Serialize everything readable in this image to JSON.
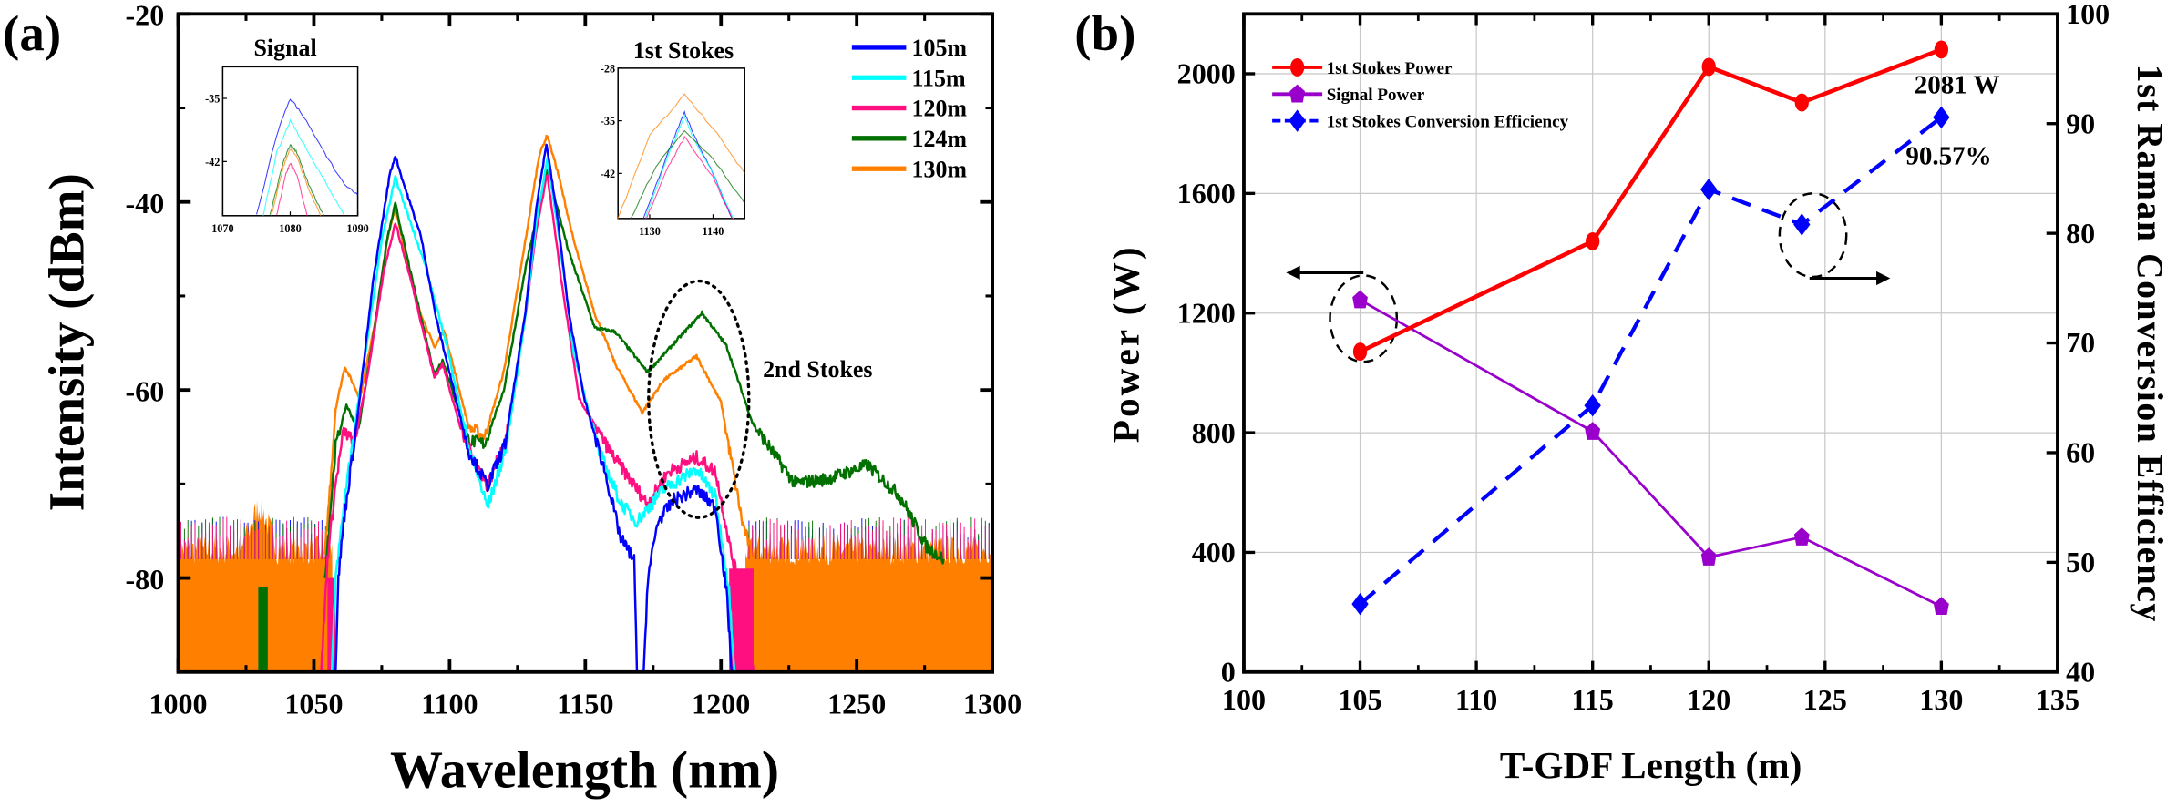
{
  "chart_data": [
    {
      "type": "line",
      "panel_label": "(a)",
      "xlabel": "Wavelength (nm)",
      "ylabel": "Intensity (dBm)",
      "xlim": [
        1000,
        1300
      ],
      "ylim": [
        -90,
        -20
      ],
      "xticks": [
        1000,
        1050,
        1100,
        1150,
        1200,
        1250,
        1300
      ],
      "yticks": [
        -20,
        -40,
        -60,
        -80
      ],
      "grid": false,
      "legend_position": "top-right",
      "noise_floor_dBm": -77,
      "annotations": {
        "signal": "Signal",
        "first_stokes": "1st Stokes",
        "second_stokes": "2nd Stokes"
      },
      "series": [
        {
          "name": "105m",
          "color": "#0000ff",
          "points": [
            [
              1058,
              -90
            ],
            [
              1059,
              -80
            ],
            [
              1061,
              -74
            ],
            [
              1066,
              -63
            ],
            [
              1072,
              -48
            ],
            [
              1078,
              -37
            ],
            [
              1080,
              -35.1
            ],
            [
              1083,
              -38
            ],
            [
              1089.5,
              -43.7
            ],
            [
              1095,
              -52.3
            ],
            [
              1099,
              -57
            ],
            [
              1107,
              -66.5
            ],
            [
              1114,
              -70.2
            ],
            [
              1120.5,
              -65.7
            ],
            [
              1128,
              -51.6
            ],
            [
              1132,
              -40.4
            ],
            [
              1135.7,
              -33.8
            ],
            [
              1140,
              -42.2
            ],
            [
              1143.8,
              -51.6
            ],
            [
              1149.6,
              -60.9
            ],
            [
              1157,
              -68.4
            ],
            [
              1163,
              -75.8
            ],
            [
              1168,
              -78
            ],
            [
              1169,
              -90
            ],
            [
              1171.5,
              -90
            ],
            [
              1173,
              -80
            ],
            [
              1176.7,
              -74
            ],
            [
              1182.6,
              -71.7
            ],
            [
              1191,
              -70.6
            ],
            [
              1198,
              -72.5
            ],
            [
              1202,
              -81.4
            ],
            [
              1204,
              -90
            ]
          ]
        },
        {
          "name": "115m",
          "color": "#00ffff",
          "points": [
            [
              1056.6,
              -90
            ],
            [
              1058,
              -80
            ],
            [
              1062,
              -70
            ],
            [
              1068,
              -58
            ],
            [
              1075,
              -44
            ],
            [
              1080,
              -37.4
            ],
            [
              1083,
              -40
            ],
            [
              1091,
              -46.7
            ],
            [
              1099,
              -55.3
            ],
            [
              1107,
              -66
            ],
            [
              1114,
              -72.5
            ],
            [
              1121,
              -66
            ],
            [
              1128,
              -52
            ],
            [
              1132,
              -42
            ],
            [
              1136,
              -35.5
            ],
            [
              1140,
              -43
            ],
            [
              1145.7,
              -56
            ],
            [
              1155,
              -66.5
            ],
            [
              1163,
              -72
            ],
            [
              1169,
              -74
            ],
            [
              1178.7,
              -70.6
            ],
            [
              1191,
              -68.4
            ],
            [
              1198,
              -71.4
            ],
            [
              1203,
              -81.4
            ],
            [
              1205,
              -90
            ]
          ]
        },
        {
          "name": "120m",
          "color": "#ff0f80",
          "points": [
            [
              1052.7,
              -90
            ],
            [
              1055,
              -78
            ],
            [
              1058,
              -70
            ],
            [
              1061,
              -64.3
            ],
            [
              1065,
              -65.7
            ],
            [
              1070,
              -58
            ],
            [
              1076,
              -47
            ],
            [
              1080,
              -42.2
            ],
            [
              1086,
              -48.6
            ],
            [
              1094.4,
              -58.7
            ],
            [
              1097.4,
              -57.2
            ],
            [
              1105,
              -65
            ],
            [
              1114,
              -70.2
            ],
            [
              1121,
              -65
            ],
            [
              1128,
              -52
            ],
            [
              1132,
              -43
            ],
            [
              1136,
              -37
            ],
            [
              1141,
              -48
            ],
            [
              1147.7,
              -60.9
            ],
            [
              1159,
              -66.5
            ],
            [
              1172.9,
              -72.1
            ],
            [
              1180.6,
              -68.7
            ],
            [
              1191,
              -67.2
            ],
            [
              1198,
              -68.7
            ],
            [
              1204,
              -77.7
            ],
            [
              1208,
              -82
            ],
            [
              1212,
              -90
            ]
          ]
        },
        {
          "name": "124m",
          "color": "#007000",
          "points": [
            [
              1054,
              -80
            ],
            [
              1058,
              -66
            ],
            [
              1062,
              -61.6
            ],
            [
              1066.4,
              -64.3
            ],
            [
              1072,
              -54
            ],
            [
              1077,
              -44
            ],
            [
              1080,
              -40.2
            ],
            [
              1086,
              -48
            ],
            [
              1094.4,
              -58.3
            ],
            [
              1097.4,
              -56.8
            ],
            [
              1107,
              -65.4
            ],
            [
              1113,
              -65.7
            ],
            [
              1120,
              -60
            ],
            [
              1128,
              -47
            ],
            [
              1136,
              -36.5
            ],
            [
              1143.8,
              -45.2
            ],
            [
              1153.5,
              -53.4
            ],
            [
              1161,
              -53.8
            ],
            [
              1172.9,
              -58.1
            ],
            [
              1180.6,
              -55.7
            ],
            [
              1193,
              -51.8
            ],
            [
              1202,
              -55.3
            ],
            [
              1211.6,
              -63.5
            ],
            [
              1227,
              -69.9
            ],
            [
              1238.8,
              -69.5
            ],
            [
              1254,
              -68
            ],
            [
              1266,
              -71.3
            ],
            [
              1275.6,
              -76.6
            ],
            [
              1282,
              -78
            ]
          ]
        },
        {
          "name": "130m",
          "color": "#ff8000",
          "points": [
            [
              1054,
              -78
            ],
            [
              1058,
              -62
            ],
            [
              1061.4,
              -57.5
            ],
            [
              1067,
              -60.9
            ],
            [
              1073,
              -52
            ],
            [
              1077,
              -44
            ],
            [
              1080,
              -40.7
            ],
            [
              1088,
              -50.8
            ],
            [
              1094.4,
              -55.5
            ],
            [
              1098,
              -53.6
            ],
            [
              1107,
              -63.9
            ],
            [
              1113,
              -65
            ],
            [
              1120,
              -58
            ],
            [
              1128,
              -44
            ],
            [
              1133,
              -35
            ],
            [
              1136,
              -32.9
            ],
            [
              1140,
              -37
            ],
            [
              1145.7,
              -44.1
            ],
            [
              1153.5,
              -51.9
            ],
            [
              1161,
              -57.2
            ],
            [
              1171,
              -62.4
            ],
            [
              1178.7,
              -59
            ],
            [
              1191,
              -56.4
            ],
            [
              1200,
              -61.3
            ],
            [
              1207.8,
              -74
            ],
            [
              1213.6,
              -79.6
            ]
          ]
        }
      ],
      "insets": [
        {
          "title": "Signal",
          "xlim": [
            1070,
            1090
          ],
          "ylim": [
            -48,
            -31.5
          ],
          "xticks": [
            1070,
            1080,
            1090
          ],
          "yticks": [
            -35,
            -42
          ],
          "series": [
            {
              "name": "105m",
              "points": [
                [
                  1075,
                  -48
                ],
                [
                  1078,
                  -39
                ],
                [
                  1080,
                  -35
                ],
                [
                  1082,
                  -37
                ],
                [
                  1085,
                  -41
                ],
                [
                  1088,
                  -44.5
                ],
                [
                  1090,
                  -45.7
                ]
              ]
            },
            {
              "name": "115m",
              "points": [
                [
                  1076,
                  -48
                ],
                [
                  1078,
                  -41
                ],
                [
                  1080,
                  -37.5
                ],
                [
                  1082,
                  -40
                ],
                [
                  1085,
                  -44
                ],
                [
                  1088,
                  -48
                ]
              ]
            },
            {
              "name": "124m",
              "points": [
                [
                  1077,
                  -48
                ],
                [
                  1079,
                  -42
                ],
                [
                  1080,
                  -40.2
                ],
                [
                  1081,
                  -41
                ],
                [
                  1083,
                  -45
                ],
                [
                  1085,
                  -48
                ]
              ]
            },
            {
              "name": "130m",
              "points": [
                [
                  1077.2,
                  -48
                ],
                [
                  1079,
                  -42.5
                ],
                [
                  1080,
                  -40.6
                ],
                [
                  1081,
                  -41.5
                ],
                [
                  1083,
                  -45.5
                ],
                [
                  1084.5,
                  -48
                ]
              ]
            },
            {
              "name": "120m",
              "points": [
                [
                  1078,
                  -48
                ],
                [
                  1079.3,
                  -43.5
                ],
                [
                  1080,
                  -42.2
                ],
                [
                  1081,
                  -43.5
                ],
                [
                  1082.5,
                  -48
                ]
              ]
            }
          ]
        },
        {
          "title": "1st Stokes",
          "xlim": [
            1125,
            1145
          ],
          "ylim": [
            -48,
            -28
          ],
          "xticks": [
            1130,
            1140
          ],
          "yticks": [
            -28,
            -35,
            -42
          ],
          "series": [
            {
              "name": "130m",
              "points": [
                [
                  1125,
                  -48
                ],
                [
                  1130,
                  -37
                ],
                [
                  1135.5,
                  -31.5
                ],
                [
                  1140,
                  -36
                ],
                [
                  1145,
                  -42
                ]
              ]
            },
            {
              "name": "105m",
              "points": [
                [
                  1129,
                  -48
                ],
                [
                  1133,
                  -39
                ],
                [
                  1135.5,
                  -33.8
                ],
                [
                  1137,
                  -37
                ],
                [
                  1140,
                  -42
                ],
                [
                  1143,
                  -48
                ]
              ]
            },
            {
              "name": "115m",
              "points": [
                [
                  1129.3,
                  -48
                ],
                [
                  1133,
                  -39.5
                ],
                [
                  1135.5,
                  -34.5
                ],
                [
                  1137,
                  -37.5
                ],
                [
                  1140,
                  -42
                ],
                [
                  1143.2,
                  -48
                ]
              ]
            },
            {
              "name": "124m",
              "points": [
                [
                  1127,
                  -48
                ],
                [
                  1131,
                  -41
                ],
                [
                  1135.5,
                  -36.3
                ],
                [
                  1140,
                  -40
                ],
                [
                  1145,
                  -46
                ]
              ]
            },
            {
              "name": "120m",
              "points": [
                [
                  1129.5,
                  -48
                ],
                [
                  1133,
                  -41
                ],
                [
                  1135.5,
                  -37.2
                ],
                [
                  1140,
                  -42.5
                ],
                [
                  1143,
                  -48
                ]
              ]
            }
          ]
        }
      ]
    },
    {
      "type": "line",
      "panel_label": "(b)",
      "xlabel": "T-GDF Length (m)",
      "ylabel": "Power (W)",
      "ylabel_right": "1st Raman Conversion Efficiency",
      "xlim": [
        100,
        135
      ],
      "ylim": [
        0,
        2200
      ],
      "ylim_right": [
        40,
        100
      ],
      "xticks": [
        100,
        105,
        110,
        115,
        120,
        125,
        130,
        135
      ],
      "yticks": [
        0,
        400,
        800,
        1200,
        1600,
        2000
      ],
      "yticks_right": [
        40,
        50,
        60,
        70,
        80,
        90,
        100
      ],
      "grid": true,
      "legend_position": "top-left",
      "x": [
        105,
        115,
        120,
        124,
        130
      ],
      "series": [
        {
          "name": "1st Stokes Power",
          "axis": "left",
          "color": "#ff0000",
          "marker": "circle",
          "dashed": false,
          "values": [
            1071,
            1440,
            2023,
            1904,
            2081
          ]
        },
        {
          "name": "Signal Power",
          "axis": "left",
          "color": "#9900cc",
          "marker": "pentagon",
          "dashed": false,
          "values": [
            1244,
            804,
            384,
            451,
            219
          ]
        },
        {
          "name": "1st Stokes Conversion Efficiency",
          "axis": "right",
          "color": "#0000ff",
          "marker": "diamond",
          "dashed": true,
          "values": [
            46.2,
            64.3,
            84.0,
            80.8,
            90.57
          ]
        }
      ],
      "annotations": {
        "peak_power": "2081 W",
        "peak_efficiency": "90.57%"
      }
    }
  ]
}
